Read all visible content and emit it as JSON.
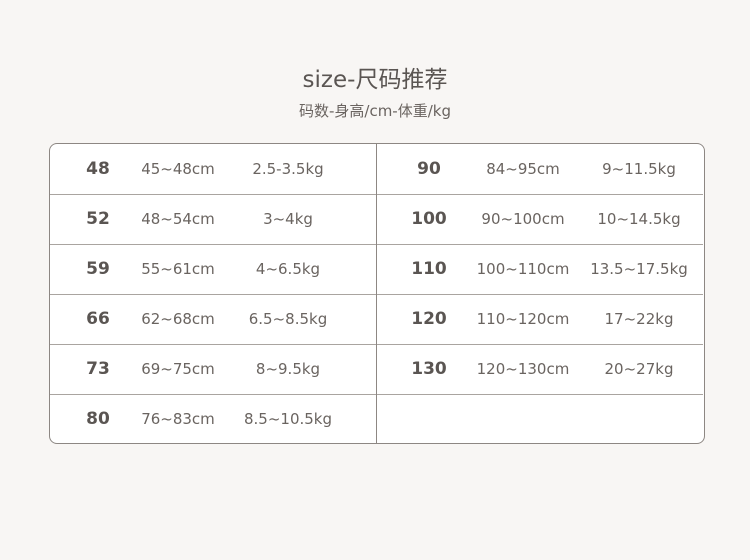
{
  "title": "size-尺码推荐",
  "subtitle": "码数-身高/cm-体重/kg",
  "left_rows": [
    {
      "size": "48",
      "height": "45~48cm",
      "weight": "2.5-3.5kg"
    },
    {
      "size": "52",
      "height": "48~54cm",
      "weight": "3~4kg"
    },
    {
      "size": "59",
      "height": "55~61cm",
      "weight": "4~6.5kg"
    },
    {
      "size": "66",
      "height": "62~68cm",
      "weight": "6.5~8.5kg"
    },
    {
      "size": "73",
      "height": "69~75cm",
      "weight": "8~9.5kg"
    },
    {
      "size": "80",
      "height": "76~83cm",
      "weight": "8.5~10.5kg"
    }
  ],
  "right_rows": [
    {
      "size": "90",
      "height": "84~95cm",
      "weight": "9~11.5kg"
    },
    {
      "size": "100",
      "height": "90~100cm",
      "weight": "10~14.5kg"
    },
    {
      "size": "110",
      "height": "100~110cm",
      "weight": "13.5~17.5kg"
    },
    {
      "size": "120",
      "height": "110~120cm",
      "weight": "17~22kg"
    },
    {
      "size": "130",
      "height": "120~130cm",
      "weight": "20~27kg"
    },
    {
      "size": "",
      "height": "",
      "weight": ""
    }
  ]
}
